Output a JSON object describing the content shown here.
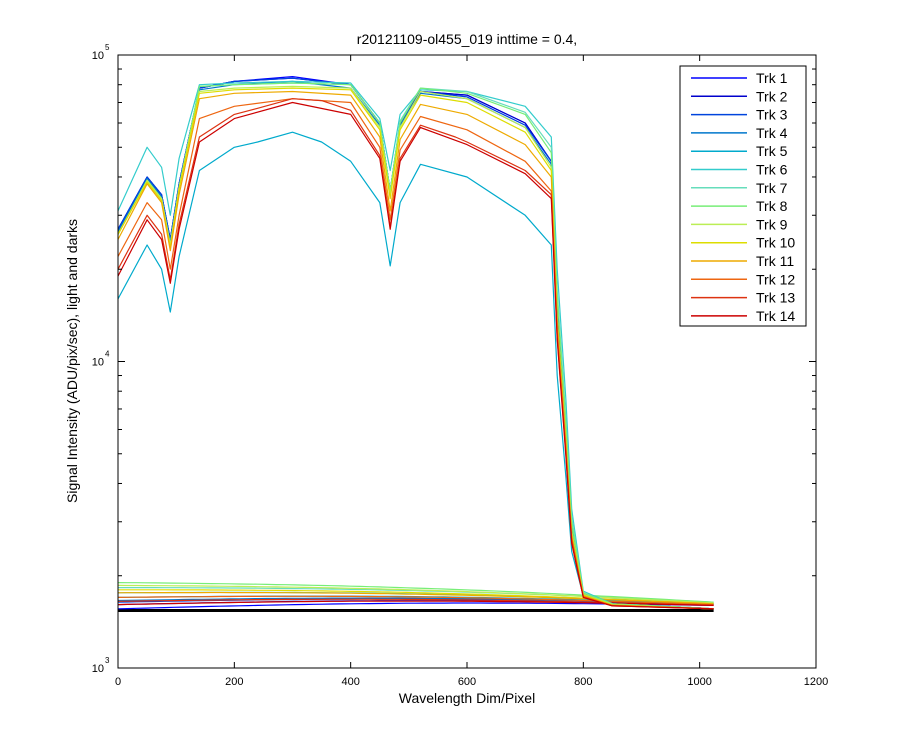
{
  "chart_data": {
    "type": "line",
    "title": "r20121109-ol455_019 inttime = 0.4,",
    "xlabel": "Wavelength Dim/Pixel",
    "ylabel": "Signal Intensity (ADU/pix/sec), light and darks",
    "xlim": [
      0,
      1200
    ],
    "ylim": [
      1000,
      100000
    ],
    "yscale": "log",
    "xticks": [
      0,
      200,
      400,
      600,
      800,
      1000,
      1200
    ],
    "xtick_labels": [
      "0",
      "200",
      "400",
      "600",
      "800",
      "1000",
      "1200"
    ],
    "yticks": [
      1000,
      10000,
      100000
    ],
    "ytick_labels": [
      {
        "base": "10",
        "exp": "3"
      },
      {
        "base": "10",
        "exp": "4"
      },
      {
        "base": "10",
        "exp": "5"
      }
    ],
    "legend_position": "top-right",
    "grid": false,
    "series": [
      {
        "name": "Trk 1",
        "color": "#0000ff",
        "light": {
          "x": [
            0,
            50,
            75,
            90,
            105,
            140,
            200,
            300,
            400,
            450,
            468,
            485,
            520,
            600,
            700,
            745,
            755,
            770,
            780,
            800,
            850,
            1000,
            1024
          ],
          "y": [
            27000,
            40000,
            35000,
            25000,
            38000,
            78000,
            82000,
            85000,
            80000,
            60000,
            36000,
            60000,
            76000,
            74000,
            60000,
            45000,
            15000,
            6000,
            3000,
            1750,
            1620,
            1570,
            1560
          ]
        },
        "dark": {
          "level": 1560,
          "end": 1600
        }
      },
      {
        "name": "Trk 2",
        "color": "#0000cc",
        "light": {
          "x": [
            0,
            50,
            75,
            90,
            105,
            140,
            200,
            300,
            400,
            450,
            468,
            485,
            520,
            600,
            700,
            745,
            755,
            770,
            780,
            800,
            850,
            1000,
            1024
          ],
          "y": [
            27000,
            40000,
            35000,
            25000,
            38000,
            78000,
            82000,
            84000,
            80000,
            60000,
            36000,
            60000,
            76000,
            74000,
            60000,
            45000,
            15000,
            6000,
            3000,
            1750,
            1620,
            1570,
            1560
          ]
        },
        "dark": {
          "level": 1610,
          "end": 1610
        }
      },
      {
        "name": "Trk 3",
        "color": "#0044dd",
        "light": {
          "x": [
            0,
            50,
            75,
            90,
            105,
            140,
            200,
            300,
            400,
            450,
            468,
            485,
            520,
            600,
            700,
            745,
            755,
            770,
            780,
            800,
            850,
            1000,
            1024
          ],
          "y": [
            27000,
            40000,
            35000,
            25000,
            38000,
            78000,
            82000,
            84000,
            80000,
            60000,
            36000,
            60000,
            76000,
            73000,
            59000,
            45000,
            15000,
            6000,
            3000,
            1750,
            1620,
            1570,
            1560
          ]
        },
        "dark": {
          "level": 1640,
          "end": 1620
        }
      },
      {
        "name": "Trk 4",
        "color": "#0077cc",
        "light": {
          "x": [
            0,
            50,
            75,
            90,
            105,
            140,
            200,
            300,
            400,
            450,
            468,
            485,
            520,
            600,
            700,
            745,
            755,
            770,
            780,
            800,
            850,
            1000,
            1024
          ],
          "y": [
            26500,
            39500,
            34500,
            24500,
            37500,
            77000,
            80000,
            82000,
            78000,
            59000,
            35500,
            59000,
            75000,
            72000,
            58000,
            44000,
            14500,
            5800,
            2900,
            1740,
            1610,
            1565,
            1560
          ]
        },
        "dark": {
          "level": 1660,
          "end": 1620
        }
      },
      {
        "name": "Trk 5",
        "color": "#00aacc",
        "light": {
          "x": [
            0,
            50,
            75,
            90,
            105,
            140,
            200,
            240,
            300,
            350,
            400,
            450,
            468,
            485,
            520,
            600,
            700,
            745,
            755,
            770,
            780,
            800,
            850,
            1000,
            1024
          ],
          "y": [
            16000,
            24000,
            20000,
            14500,
            22000,
            42000,
            50000,
            52000,
            56000,
            52000,
            45000,
            33000,
            20500,
            33000,
            44000,
            40000,
            30000,
            24000,
            9000,
            4200,
            2400,
            1720,
            1610,
            1565,
            1560
          ]
        },
        "dark": {
          "level": 1700,
          "end": 1620
        }
      },
      {
        "name": "Trk 6",
        "color": "#33cccc",
        "light": {
          "x": [
            0,
            50,
            75,
            90,
            105,
            140,
            200,
            300,
            400,
            450,
            468,
            485,
            520,
            600,
            700,
            745,
            755,
            770,
            780,
            800,
            850,
            1000,
            1024
          ],
          "y": [
            31000,
            50000,
            43000,
            30000,
            46000,
            80000,
            81000,
            82000,
            81000,
            62000,
            42000,
            64000,
            77000,
            76000,
            68000,
            54000,
            20000,
            7500,
            3300,
            1780,
            1620,
            1570,
            1560
          ]
        },
        "dark": {
          "level": 1760,
          "end": 1630
        }
      },
      {
        "name": "Trk 7",
        "color": "#66ddbb",
        "light": {
          "x": [
            0,
            50,
            75,
            90,
            105,
            140,
            200,
            300,
            400,
            450,
            468,
            485,
            520,
            600,
            700,
            745,
            755,
            770,
            780,
            800,
            850,
            1000,
            1024
          ],
          "y": [
            26000,
            39000,
            34000,
            24000,
            37000,
            79000,
            80000,
            81000,
            80000,
            60000,
            36000,
            61000,
            78000,
            76000,
            65000,
            50000,
            17000,
            6500,
            3100,
            1760,
            1620,
            1570,
            1560
          ]
        },
        "dark": {
          "level": 1830,
          "end": 1640
        }
      },
      {
        "name": "Trk 8",
        "color": "#77ee77",
        "light": {
          "x": [
            0,
            50,
            75,
            90,
            105,
            140,
            200,
            300,
            400,
            450,
            468,
            485,
            520,
            600,
            700,
            745,
            755,
            770,
            780,
            800,
            850,
            1000,
            1024
          ],
          "y": [
            26000,
            39000,
            34000,
            24000,
            37000,
            79000,
            80000,
            81000,
            80000,
            60000,
            36000,
            60000,
            78000,
            75000,
            64000,
            48000,
            16500,
            6300,
            3000,
            1760,
            1620,
            1570,
            1560
          ]
        },
        "dark": {
          "level": 1900,
          "end": 1640
        }
      },
      {
        "name": "Trk 9",
        "color": "#bbee55",
        "light": {
          "x": [
            0,
            50,
            75,
            90,
            105,
            140,
            200,
            300,
            400,
            450,
            468,
            485,
            520,
            600,
            700,
            745,
            755,
            770,
            780,
            800,
            850,
            1000,
            1024
          ],
          "y": [
            26000,
            39000,
            34000,
            24000,
            37000,
            76000,
            78000,
            79000,
            78000,
            58000,
            35000,
            58000,
            76000,
            72000,
            58000,
            43000,
            14000,
            5600,
            2800,
            1740,
            1610,
            1565,
            1560
          ]
        },
        "dark": {
          "level": 1860,
          "end": 1630
        }
      },
      {
        "name": "Trk 10",
        "color": "#dddd00",
        "light": {
          "x": [
            0,
            50,
            75,
            90,
            105,
            140,
            200,
            300,
            400,
            450,
            468,
            485,
            520,
            600,
            700,
            745,
            755,
            770,
            780,
            800,
            850,
            1000,
            1024
          ],
          "y": [
            26000,
            38500,
            33500,
            23500,
            36500,
            75000,
            77000,
            78000,
            77000,
            57000,
            34000,
            57000,
            74000,
            70000,
            56000,
            42000,
            13800,
            5500,
            2750,
            1730,
            1605,
            1565,
            1560
          ]
        },
        "dark": {
          "level": 1800,
          "end": 1620
        }
      },
      {
        "name": "Trk 11",
        "color": "#eeaa00",
        "light": {
          "x": [
            0,
            50,
            75,
            90,
            105,
            140,
            200,
            300,
            400,
            450,
            468,
            485,
            520,
            600,
            700,
            745,
            755,
            770,
            780,
            800,
            850,
            1000,
            1024
          ],
          "y": [
            25000,
            38000,
            33000,
            23000,
            35000,
            72000,
            75000,
            76000,
            74000,
            54000,
            31000,
            53000,
            69000,
            64000,
            51000,
            40000,
            13500,
            5400,
            2700,
            1720,
            1600,
            1565,
            1560
          ]
        },
        "dark": {
          "level": 1760,
          "end": 1620
        }
      },
      {
        "name": "Trk 12",
        "color": "#ee6611",
        "light": {
          "x": [
            0,
            50,
            75,
            90,
            105,
            140,
            200,
            300,
            400,
            450,
            468,
            485,
            520,
            600,
            700,
            745,
            755,
            770,
            780,
            800,
            850,
            1000,
            1024
          ],
          "y": [
            22000,
            33000,
            29000,
            20000,
            30000,
            62000,
            68000,
            72000,
            70000,
            50000,
            29000,
            49000,
            63000,
            57000,
            45000,
            36000,
            12500,
            5200,
            2650,
            1710,
            1600,
            1565,
            1560
          ]
        },
        "dark": {
          "level": 1700,
          "end": 1610
        }
      },
      {
        "name": "Trk 13",
        "color": "#dd3311",
        "light": {
          "x": [
            0,
            50,
            75,
            90,
            105,
            140,
            200,
            240,
            300,
            350,
            400,
            450,
            468,
            485,
            520,
            580,
            600,
            700,
            745,
            755,
            770,
            780,
            800,
            850,
            1000,
            1024
          ],
          "y": [
            20000,
            30000,
            26000,
            18500,
            28000,
            54000,
            64000,
            67000,
            72000,
            71000,
            66000,
            47000,
            27500,
            46000,
            59000,
            54000,
            52000,
            42000,
            35000,
            12000,
            5000,
            2600,
            1700,
            1595,
            1565,
            1560
          ]
        },
        "dark": {
          "level": 1650,
          "end": 1600
        }
      },
      {
        "name": "Trk 14",
        "color": "#cc0000",
        "light": {
          "x": [
            0,
            50,
            75,
            90,
            105,
            140,
            200,
            300,
            400,
            450,
            468,
            485,
            520,
            600,
            700,
            745,
            755,
            770,
            780,
            800,
            850,
            1000,
            1024
          ],
          "y": [
            19000,
            29000,
            25000,
            18000,
            27000,
            52000,
            62000,
            70000,
            64000,
            46000,
            27000,
            45000,
            58000,
            51000,
            41000,
            34000,
            11800,
            4900,
            2550,
            1700,
            1595,
            1565,
            1560
          ]
        },
        "dark": {
          "level": 1610,
          "end": 1600
        }
      }
    ],
    "dark_floor": {
      "color": "#000000",
      "level": 1540,
      "x": [
        0,
        1024
      ]
    }
  }
}
